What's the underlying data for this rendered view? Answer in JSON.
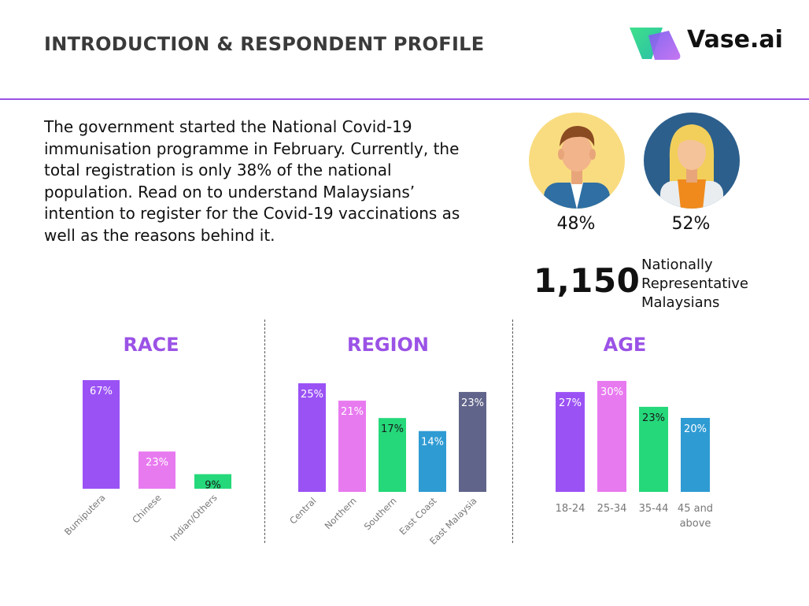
{
  "header": {
    "title": "INTRODUCTION & RESPONDENT PROFILE",
    "brand": "Vase.ai"
  },
  "intro": {
    "text": "The government started the National Covid-19 immunisation programme in February. Currently, the total registration is only 38% of the national population. Read on to understand Malaysians’ intention to register for the Covid-19 vaccinations as well as the reasons behind it."
  },
  "gender": {
    "male_pct": "48%",
    "female_pct": "52%"
  },
  "sample": {
    "count": "1,150",
    "description_lines": [
      "Nationally",
      "Representative",
      "Malaysians"
    ]
  },
  "colors": {
    "accent": "#9b52e6",
    "purple": "#9b52f5",
    "pink": "#e87af0",
    "green": "#25d87a",
    "blue": "#2f9bd3",
    "slate": "#61648a"
  },
  "chart_data": [
    {
      "type": "bar",
      "title": "RACE",
      "categories": [
        "Bumiputera",
        "Chinese",
        "Indian/Others"
      ],
      "values": [
        67,
        23,
        9
      ],
      "labels": [
        "67%",
        "23%",
        "9%"
      ],
      "colors": [
        "#9b52f5",
        "#e87af0",
        "#25d87a"
      ],
      "ylim": [
        0,
        67
      ],
      "unit": "%"
    },
    {
      "type": "bar",
      "title": "REGION",
      "categories": [
        "Central",
        "Northern",
        "Southern",
        "East Coast",
        "East Malaysia"
      ],
      "values": [
        25,
        21,
        17,
        14,
        23
      ],
      "labels": [
        "25%",
        "21%",
        "17%",
        "14%",
        "23%"
      ],
      "colors": [
        "#9b52f5",
        "#e87af0",
        "#25d87a",
        "#2f9bd3",
        "#61648a"
      ],
      "ylim": [
        0,
        25
      ],
      "unit": "%"
    },
    {
      "type": "bar",
      "title": "AGE",
      "categories": [
        "18-24",
        "25-34",
        "35-44",
        "45 and above"
      ],
      "category_lines": [
        [
          "18-24"
        ],
        [
          "25-34"
        ],
        [
          "35-44"
        ],
        [
          "45 and",
          "above"
        ]
      ],
      "values": [
        27,
        30,
        23,
        20
      ],
      "labels": [
        "27%",
        "30%",
        "23%",
        "20%"
      ],
      "colors": [
        "#9b52f5",
        "#e87af0",
        "#25d87a",
        "#2f9bd3"
      ],
      "ylim": [
        0,
        30
      ],
      "unit": "%"
    }
  ]
}
